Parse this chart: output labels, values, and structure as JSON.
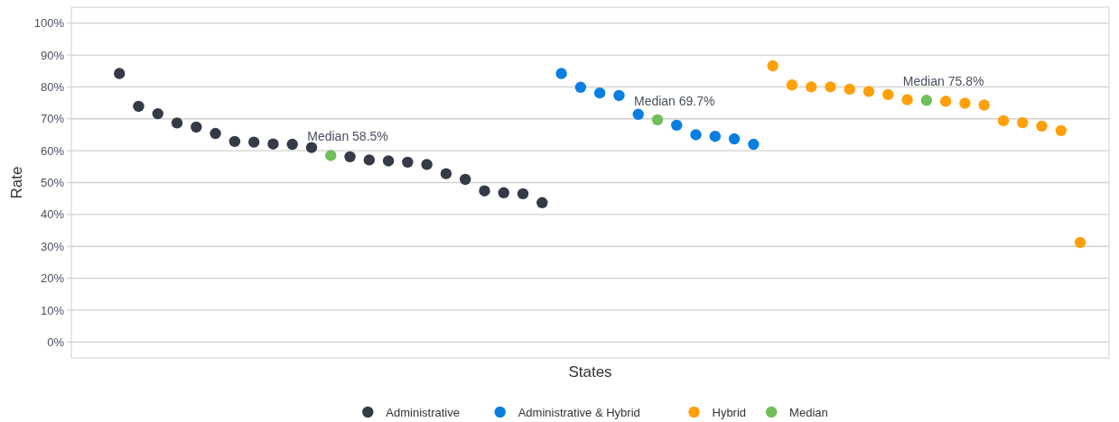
{
  "chart_data": {
    "type": "scatter",
    "xlabel": "States",
    "ylabel": "Rate",
    "categories": [
      null,
      null,
      null,
      null,
      null,
      null,
      null,
      null,
      null,
      null,
      null,
      null,
      null,
      null,
      null,
      null,
      null,
      null,
      null,
      null,
      null,
      null,
      null,
      null,
      null,
      null,
      null,
      null,
      null,
      null,
      null,
      null,
      null,
      null,
      null,
      null,
      null,
      null,
      null,
      null,
      null,
      null,
      null,
      null,
      null,
      null,
      null,
      null,
      null,
      null,
      null,
      null,
      null,
      null
    ],
    "series": [
      {
        "name": "Administrative",
        "color": "#343a46",
        "values": [
          null,
          null,
          84.2,
          73.9,
          71.6,
          68.7,
          67.4,
          65.4,
          62.9,
          62.7,
          62.1,
          62.0,
          61.0,
          null,
          58.1,
          57.1,
          56.8,
          56.4,
          55.7,
          52.8,
          51.0,
          47.4,
          46.8,
          46.5,
          43.7,
          null,
          null,
          null,
          null,
          null,
          null,
          null,
          null,
          null,
          null,
          null,
          null,
          null,
          null,
          null,
          null,
          null,
          null,
          null,
          null,
          null,
          null,
          null,
          null,
          null,
          null,
          null,
          null,
          null
        ]
      },
      {
        "name": "Administrative & Hybrid",
        "color": "#0a7fe0",
        "values": [
          null,
          null,
          null,
          null,
          null,
          null,
          null,
          null,
          null,
          null,
          null,
          null,
          null,
          null,
          null,
          null,
          null,
          null,
          null,
          null,
          null,
          null,
          null,
          null,
          null,
          84.2,
          79.9,
          78.1,
          77.3,
          71.4,
          null,
          68.0,
          65.0,
          64.5,
          63.7,
          62.0,
          null,
          null,
          null,
          null,
          null,
          null,
          null,
          null,
          null,
          null,
          null,
          null,
          null,
          null,
          null,
          null,
          null,
          null
        ]
      },
      {
        "name": "Hybrid",
        "color": "#ff9f0a",
        "values": [
          null,
          null,
          null,
          null,
          null,
          null,
          null,
          null,
          null,
          null,
          null,
          null,
          null,
          null,
          null,
          null,
          null,
          null,
          null,
          null,
          null,
          null,
          null,
          null,
          null,
          null,
          null,
          null,
          null,
          null,
          null,
          null,
          null,
          null,
          null,
          null,
          86.6,
          80.6,
          80.0,
          80.0,
          79.3,
          78.6,
          77.6,
          76.0,
          null,
          75.5,
          74.9,
          74.3,
          69.4,
          68.8,
          67.7,
          66.3,
          31.2,
          null
        ]
      },
      {
        "name": "Median",
        "color": "#70bf5a",
        "values": [
          null,
          null,
          null,
          null,
          null,
          null,
          null,
          null,
          null,
          null,
          null,
          null,
          null,
          58.5,
          null,
          null,
          null,
          null,
          null,
          null,
          null,
          null,
          null,
          null,
          null,
          null,
          null,
          null,
          null,
          null,
          69.7,
          null,
          null,
          null,
          null,
          null,
          null,
          null,
          null,
          null,
          null,
          null,
          null,
          null,
          75.8,
          null,
          null,
          null,
          null,
          null,
          null,
          null,
          null,
          null
        ]
      }
    ],
    "annotations": [
      "Median 58.5%",
      "Median 69.7%",
      "Median 75.8%"
    ],
    "ylim": [
      -5,
      105
    ],
    "yticks": [
      {
        "value": 0,
        "label": "0%"
      },
      {
        "value": 10,
        "label": "10%"
      },
      {
        "value": 20,
        "label": "20%"
      },
      {
        "value": 30,
        "label": "30%"
      },
      {
        "value": 40,
        "label": "40%"
      },
      {
        "value": 50,
        "label": "50%"
      },
      {
        "value": 60,
        "label": "60%"
      },
      {
        "value": 70,
        "label": "70%"
      },
      {
        "value": 80,
        "label": "80%"
      },
      {
        "value": 90,
        "label": "90%"
      },
      {
        "value": 100,
        "label": "100%"
      }
    ],
    "grid": "y",
    "legend": "bottom",
    "marker": "circle"
  }
}
